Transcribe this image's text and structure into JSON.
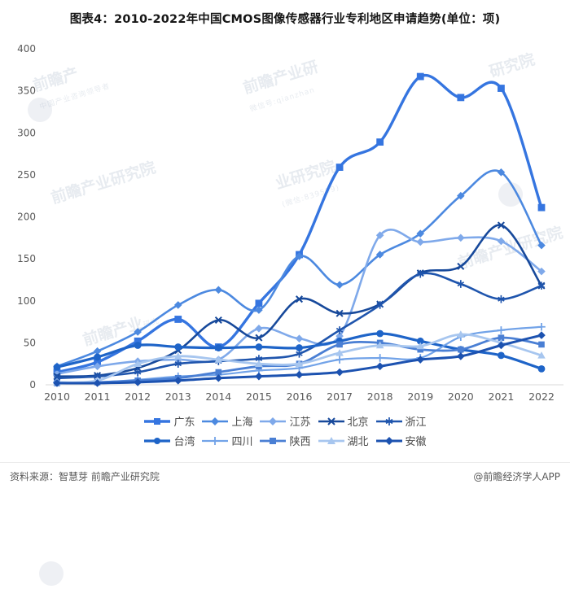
{
  "title": "图表4：2010-2022年中国CMOS图像传感器行业专利地区申请趋势(单位：项)",
  "watermark": "前瞻产业研究院",
  "watermark_sub": "中国产业咨询领导者",
  "footer": {
    "source": "资料来源：智慧芽 前瞻产业研究院",
    "credit": "@前瞻经济学人APP"
  },
  "chart_data": {
    "type": "line",
    "x": [
      2010,
      2011,
      2012,
      2013,
      2014,
      2015,
      2016,
      2017,
      2018,
      2019,
      2020,
      2021,
      2022
    ],
    "ylim": [
      0,
      400
    ],
    "yticks": [
      0,
      50,
      100,
      150,
      200,
      250,
      300,
      350,
      400
    ],
    "grid": false,
    "legend_position": "bottom",
    "series": [
      {
        "name": "广东",
        "slug": "guangdong",
        "color": "#3575e0",
        "marker": "square",
        "width": 3.4,
        "values": [
          15,
          27,
          52,
          78,
          45,
          97,
          155,
          259,
          289,
          367,
          342,
          353,
          211
        ]
      },
      {
        "name": "上海",
        "slug": "shanghai",
        "color": "#4c89e0",
        "marker": "diamond",
        "width": 2.6,
        "values": [
          22,
          40,
          63,
          95,
          113,
          89,
          153,
          119,
          155,
          180,
          225,
          253,
          166
        ]
      },
      {
        "name": "江苏",
        "slug": "jiangsu",
        "color": "#7fa9ea",
        "marker": "diamond",
        "width": 2.6,
        "values": [
          13,
          22,
          28,
          30,
          30,
          67,
          55,
          58,
          178,
          170,
          175,
          171,
          135
        ]
      },
      {
        "name": "北京",
        "slug": "beijing",
        "color": "#17499b",
        "marker": "x",
        "width": 2.6,
        "values": [
          10,
          11,
          20,
          41,
          77,
          56,
          102,
          85,
          96,
          133,
          141,
          190,
          118
        ]
      },
      {
        "name": "浙江",
        "slug": "zhejiang",
        "color": "#1f55ad",
        "marker": "asterisk",
        "width": 2.6,
        "values": [
          8,
          10,
          15,
          25,
          28,
          31,
          37,
          65,
          95,
          132,
          120,
          102,
          118
        ]
      },
      {
        "name": "台湾",
        "slug": "taiwan",
        "color": "#1e64c8",
        "marker": "circle",
        "width": 3.2,
        "values": [
          21,
          33,
          47,
          45,
          44,
          45,
          44,
          52,
          61,
          52,
          42,
          35,
          19
        ]
      },
      {
        "name": "四川",
        "slug": "sichuan",
        "color": "#72a3e8",
        "marker": "plus",
        "width": 2.2,
        "values": [
          3,
          3,
          6,
          10,
          12,
          17,
          20,
          30,
          32,
          32,
          57,
          65,
          69
        ]
      },
      {
        "name": "陕西",
        "slug": "shaanxi",
        "color": "#4a7fd4",
        "marker": "square",
        "width": 2.8,
        "values": [
          2,
          3,
          5,
          8,
          15,
          22,
          25,
          48,
          50,
          42,
          42,
          56,
          48
        ]
      },
      {
        "name": "湖北",
        "slug": "hubei",
        "color": "#a7c6ef",
        "marker": "triangle",
        "width": 2.8,
        "values": [
          3,
          5,
          25,
          34,
          30,
          25,
          25,
          38,
          47,
          46,
          60,
          50,
          35
        ]
      },
      {
        "name": "安徽",
        "slug": "anhui",
        "color": "#1c52b0",
        "marker": "diamond",
        "width": 3.0,
        "values": [
          2,
          2,
          3,
          5,
          8,
          10,
          12,
          15,
          22,
          30,
          34,
          47,
          59
        ]
      }
    ]
  }
}
